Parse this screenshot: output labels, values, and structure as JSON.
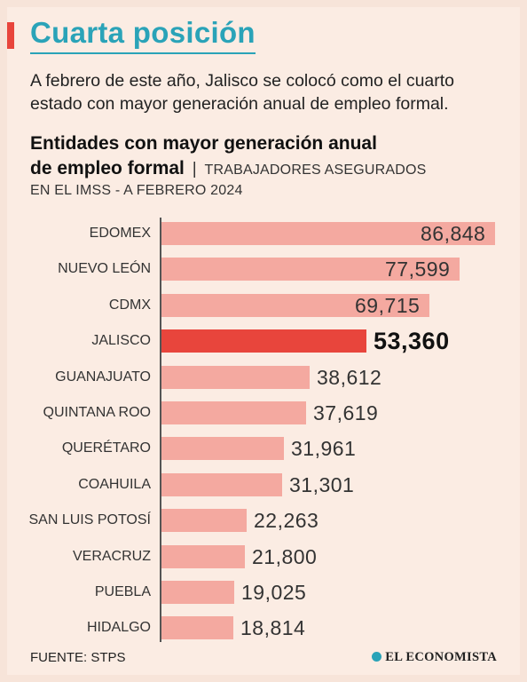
{
  "header": {
    "title": "Cuarta posición",
    "intro": "A febrero de este año, Jalisco se colocó como el cuarto estado con mayor generación anual de empleo formal."
  },
  "chart_title": {
    "line1": "Entidades con mayor generación anual",
    "line2": "de empleo formal",
    "separator": "|",
    "unit_part1": "TRABAJADORES ASEGURADOS",
    "unit_part2": "EN EL IMSS - A FEBRERO 2024"
  },
  "footer": {
    "source": "FUENTE: STPS",
    "brand": "EL ECONOMISTA"
  },
  "colors": {
    "accent": "#e8453c",
    "bar": "#f4a9a0",
    "title": "#2aa3b8"
  },
  "chart_data": {
    "type": "bar",
    "orientation": "horizontal",
    "categories": [
      "EDOMEX",
      "NUEVO LEÓN",
      "CDMX",
      "JALISCO",
      "GUANAJUATO",
      "QUINTANA ROO",
      "QUERÉTARO",
      "COAHUILA",
      "SAN LUIS POTOSÍ",
      "VERACRUZ",
      "PUEBLA",
      "HIDALGO"
    ],
    "values": [
      86848,
      77599,
      69715,
      53360,
      38612,
      37619,
      31961,
      31301,
      22263,
      21800,
      19025,
      18814
    ],
    "labels": [
      "86,848",
      "77,599",
      "69,715",
      "53,360",
      "38,612",
      "37,619",
      "31,961",
      "31,301",
      "22,263",
      "21,800",
      "19,025",
      "18,814"
    ],
    "highlight": "JALISCO",
    "xlim": [
      0,
      86848
    ],
    "grid": false
  }
}
